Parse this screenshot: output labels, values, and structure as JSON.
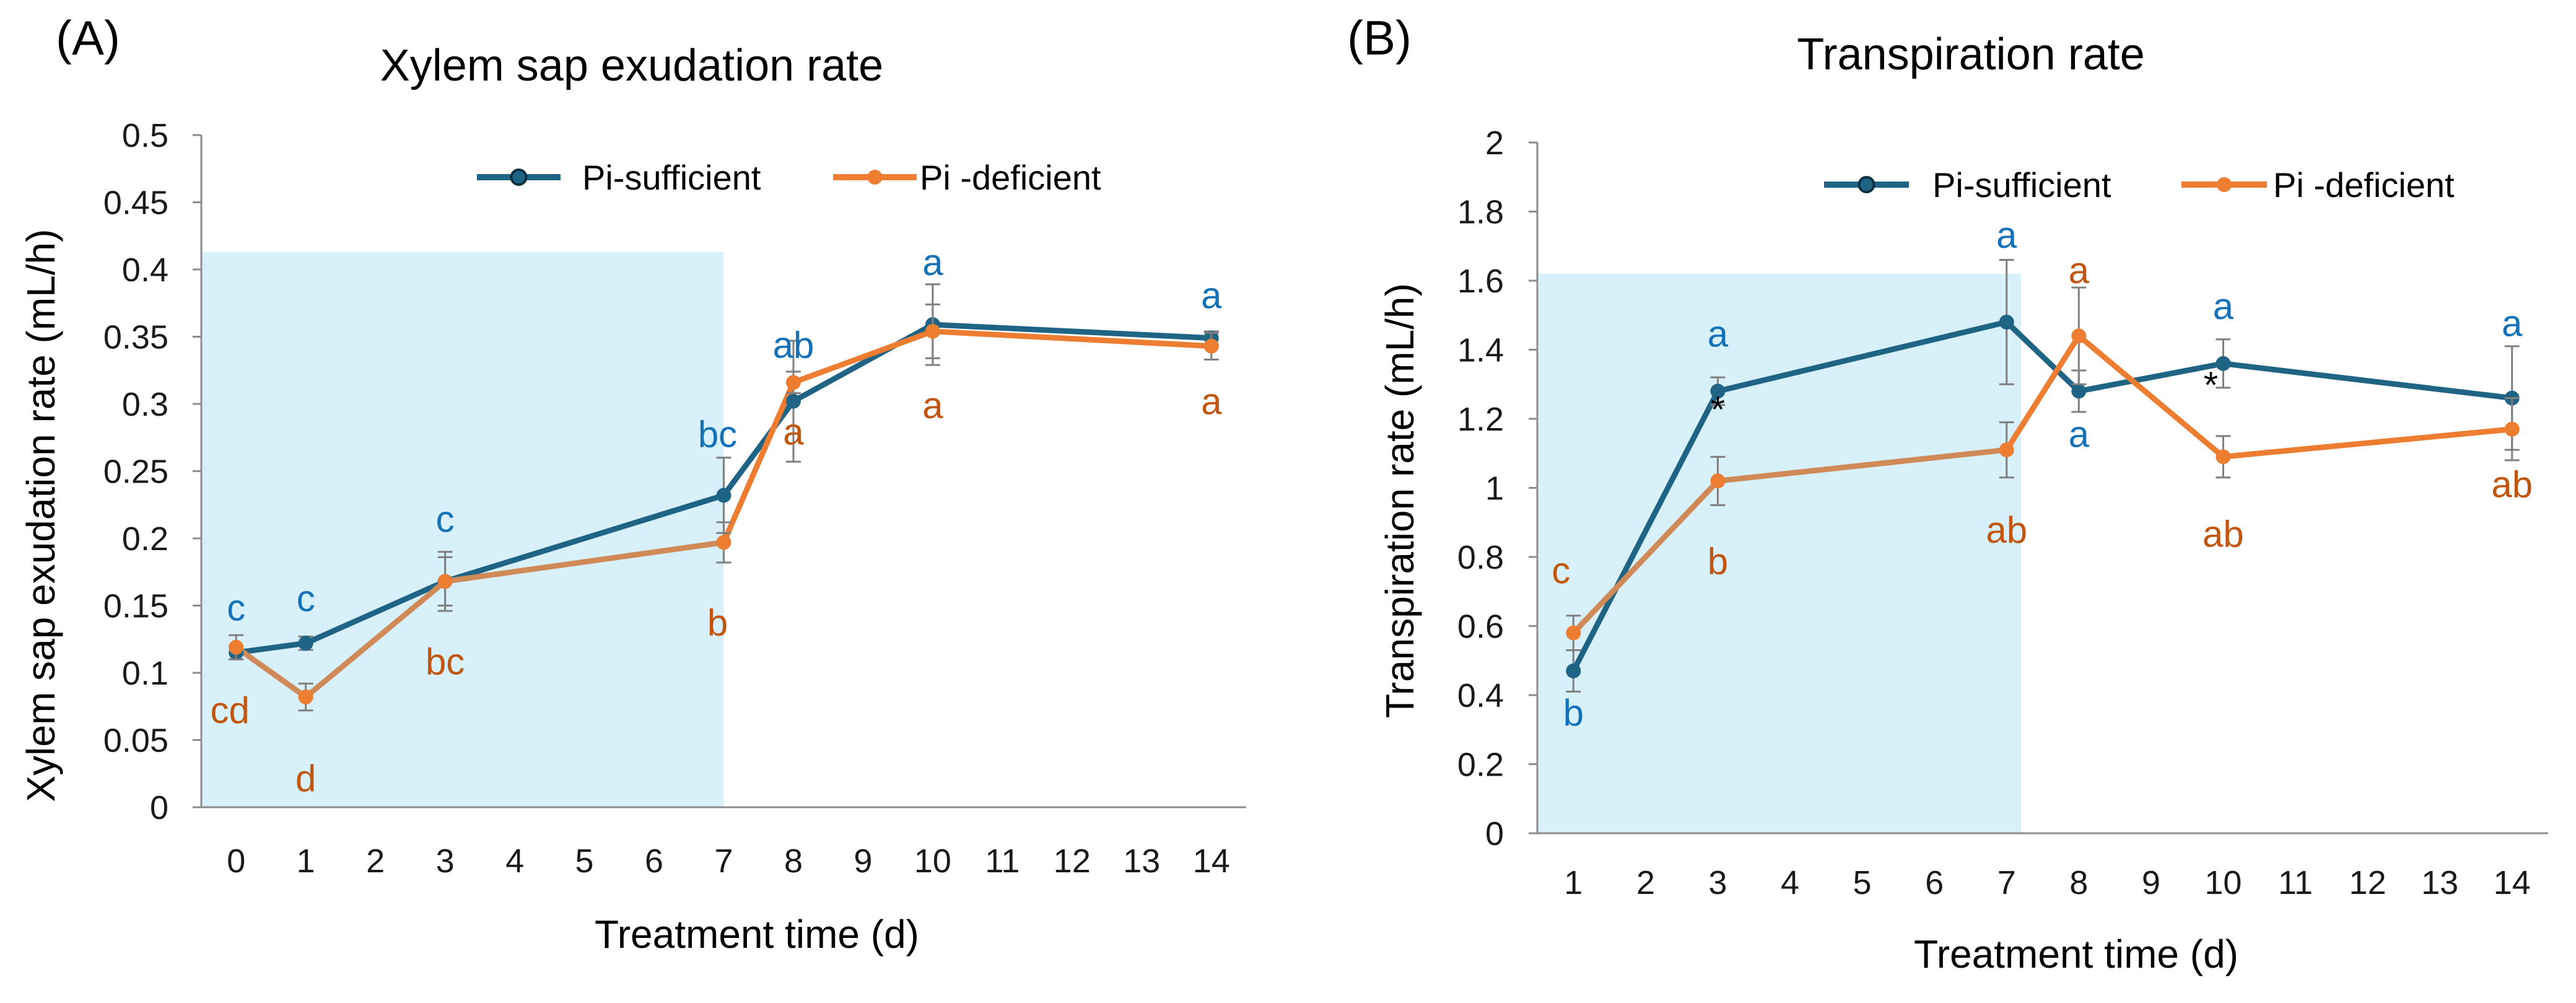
{
  "colors": {
    "sufficient": "#1F6385",
    "deficient": "#ED7D31",
    "deficient_muted": "#D08A58",
    "label_sufficient": "#1672B8",
    "label_deficient": "#C0560F",
    "shade": "#D8F0FA",
    "error": "#7F7F7F",
    "axis": "#8C8C8C"
  },
  "chart_data": [
    {
      "type": "line",
      "panel_label": "(A)",
      "title": "Xylem sap exudation rate",
      "xlabel": "Treatment time (d)",
      "ylabel": "Xylem sap exudation rate (mL/h)",
      "x_ticks": [
        0,
        1,
        2,
        3,
        4,
        5,
        6,
        7,
        8,
        9,
        10,
        11,
        12,
        13,
        14
      ],
      "y_ticks": [
        "0",
        "0.05",
        "0.1",
        "0.15",
        "0.2",
        "0.25",
        "0.3",
        "0.35",
        "0.4",
        "0.45",
        "0.5"
      ],
      "ylim": [
        0,
        0.5
      ],
      "xlim": [
        -0.5,
        14.5
      ],
      "shaded_x_range": [
        -0.5,
        7
      ],
      "shaded_y_top": 0.413,
      "legend": [
        "Pi-sufficient",
        "Pi -deficient"
      ],
      "series": [
        {
          "name": "Pi-sufficient",
          "x": [
            0,
            1,
            3,
            7,
            8,
            10,
            14
          ],
          "values": [
            0.115,
            0.122,
            0.168,
            0.232,
            0.302,
            0.359,
            0.349
          ],
          "errors": [
            0.005,
            0.005,
            0.022,
            0.028,
            0.045,
            0.03,
            0.005
          ],
          "labels": [
            "c",
            "c",
            "c",
            "bc",
            "ab",
            "a",
            "a"
          ]
        },
        {
          "name": "Pi -deficient",
          "x": [
            0,
            1,
            3,
            7,
            8,
            10,
            14
          ],
          "values": [
            0.119,
            0.082,
            0.168,
            0.197,
            0.316,
            0.354,
            0.343
          ],
          "errors": [
            0.009,
            0.01,
            0.018,
            0.015,
            0.008,
            0.02,
            0.01
          ],
          "labels": [
            "cd",
            "d",
            "bc",
            "b",
            "a",
            "a",
            "a"
          ]
        }
      ],
      "significance": []
    },
    {
      "type": "line",
      "panel_label": "(B)",
      "title": "Transpiration rate",
      "xlabel": "Treatment time (d)",
      "ylabel": "Transpiration rate (mL/h)",
      "x_ticks": [
        1,
        2,
        3,
        4,
        5,
        6,
        7,
        8,
        9,
        10,
        11,
        12,
        13,
        14
      ],
      "y_ticks": [
        "0",
        "0.2",
        "0.4",
        "0.6",
        "0.8",
        "1",
        "1.2",
        "1.4",
        "1.6",
        "1.8",
        "2"
      ],
      "ylim": [
        0,
        2
      ],
      "xlim": [
        0.5,
        14.5
      ],
      "shaded_x_range": [
        0.5,
        7.2
      ],
      "shaded_y_top": 1.62,
      "legend": [
        "Pi-sufficient",
        "Pi -deficient"
      ],
      "series": [
        {
          "name": "Pi-sufficient",
          "x": [
            1,
            3,
            7,
            8,
            10,
            14
          ],
          "values": [
            0.47,
            1.28,
            1.48,
            1.28,
            1.36,
            1.26
          ],
          "errors": [
            0.06,
            0.04,
            0.18,
            0.06,
            0.07,
            0.15
          ],
          "labels": [
            "b",
            "a",
            "a",
            "a",
            "a",
            "a"
          ]
        },
        {
          "name": "Pi -deficient",
          "x": [
            1,
            3,
            7,
            8,
            10,
            14
          ],
          "values": [
            0.58,
            1.02,
            1.11,
            1.44,
            1.09,
            1.17
          ],
          "errors": [
            0.05,
            0.07,
            0.08,
            0.14,
            0.06,
            0.09
          ],
          "labels": [
            "c",
            "b",
            "ab",
            "a",
            "ab",
            "ab"
          ]
        }
      ],
      "significance": [
        {
          "x": 3,
          "text": "*"
        },
        {
          "x": 10,
          "text": "*"
        }
      ]
    }
  ]
}
